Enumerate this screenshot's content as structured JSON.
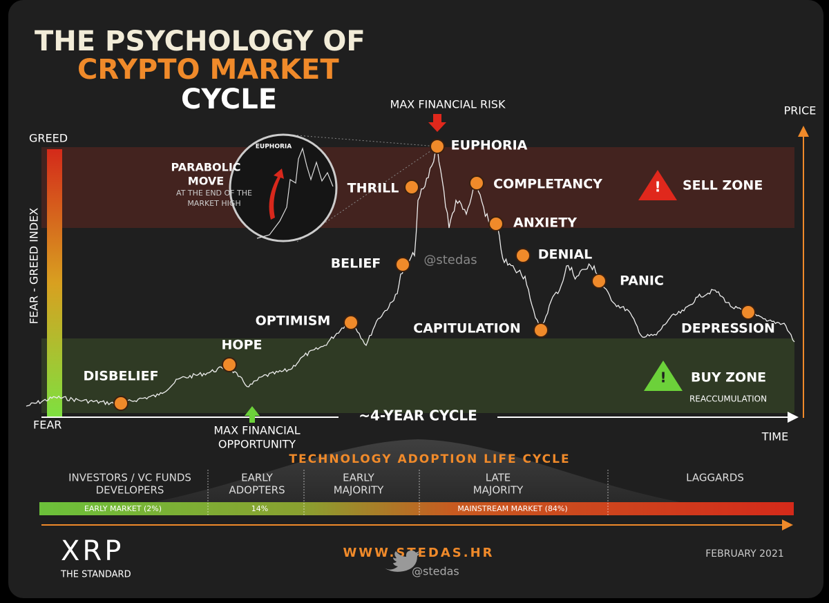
{
  "title": {
    "line1": "THE PSYCHOLOGY OF",
    "line2": "CRYPTO MARKET",
    "line3": "CYCLE"
  },
  "axes": {
    "greed": "GREED",
    "index": "FEAR - GREED INDEX",
    "fear": "FEAR",
    "price": "PRICE",
    "time": "TIME",
    "cycle": "~4-YEAR CYCLE"
  },
  "markers": {
    "max_risk": "MAX FINANCIAL RISK",
    "max_opportunity": [
      "MAX FINANCIAL",
      "OPPORTUNITY"
    ]
  },
  "stages": [
    "DISBELIEF",
    "HOPE",
    "OPTIMISM",
    "BELIEF",
    "THRILL",
    "EUPHORIA",
    "COMPLETANCY",
    "ANXIETY",
    "DENIAL",
    "PANIC",
    "CAPITULATION",
    "DEPRESSION"
  ],
  "zones": {
    "sell": "SELL ZONE",
    "buy": "BUY ZONE",
    "reaccumulation": "REACCUMULATION"
  },
  "inset": {
    "euphoria": "EUPHORIA",
    "move": [
      "PARABOLIC",
      "MOVE"
    ],
    "note": [
      "AT THE END OF THE",
      "MARKET HIGH"
    ]
  },
  "watermark": "@stedas",
  "adoption": {
    "title": "TECHNOLOGY ADOPTION LIFE CYCLE",
    "groups": [
      [
        "INVESTORS / VC FUNDS",
        "DEVELOPERS"
      ],
      [
        "EARLY",
        "ADOPTERS"
      ],
      [
        "EARLY",
        "MAJORITY"
      ],
      [
        "LATE",
        "MAJORITY"
      ],
      [
        "LAGGARDS"
      ]
    ],
    "segments": [
      "EARLY MARKET (2%)",
      "14%",
      "MAINSTREAM MARKET (84%)"
    ]
  },
  "footer": {
    "brand": "XRP",
    "tagline": "THE STANDARD",
    "site": "WWW.STEDAS.HR",
    "handle": "@stedas",
    "date": "FEBRUARY 2021"
  }
}
